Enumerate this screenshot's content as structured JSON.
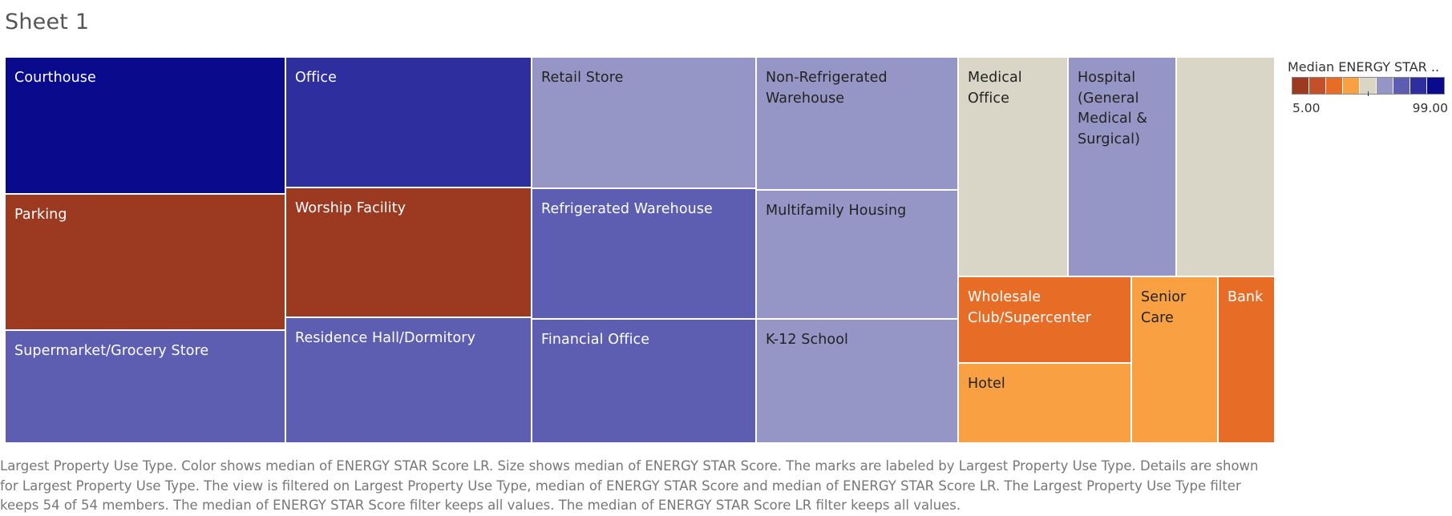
{
  "sheet": {
    "title": "Sheet 1"
  },
  "chart_data": {
    "type": "treemap",
    "dimension": "Largest Property Use Type",
    "size_measure": "median of ENERGY STAR Score",
    "color_measure": "median of ENERGY STAR Score LR",
    "tiles": [
      {
        "label": "Courthouse",
        "color": "#0a0a8c",
        "text_color": "#ffffff"
      },
      {
        "label": "Parking",
        "color": "#9c3a21",
        "text_color": "#ffffff"
      },
      {
        "label": "Supermarket/Grocery Store",
        "color": "#5d5db1",
        "text_color": "#ffffff"
      },
      {
        "label": "Office",
        "color": "#2e2e9e",
        "text_color": "#ffffff"
      },
      {
        "label": "Worship Facility",
        "color": "#9c3a21",
        "text_color": "#ffffff"
      },
      {
        "label": "Residence Hall/Dormitory",
        "color": "#5d5db1",
        "text_color": "#ffffff"
      },
      {
        "label": "Retail Store",
        "color": "#9696c6",
        "text_color": "#222222"
      },
      {
        "label": "Refrigerated Warehouse",
        "color": "#5d5db1",
        "text_color": "#ffffff"
      },
      {
        "label": "Financial Office",
        "color": "#5d5db1",
        "text_color": "#ffffff"
      },
      {
        "label": "Non-Refrigerated Warehouse",
        "color": "#9696c6",
        "text_color": "#222222"
      },
      {
        "label": "Multifamily Housing",
        "color": "#9696c6",
        "text_color": "#222222"
      },
      {
        "label": "K-12 School",
        "color": "#9696c6",
        "text_color": "#222222"
      },
      {
        "label": "Medical Office",
        "color": "#d9d6c8",
        "text_color": "#222222"
      },
      {
        "label": "Hospital (General Medical & Surgical)",
        "color": "#9696c6",
        "text_color": "#222222"
      },
      {
        "label": "",
        "color": "#d9d6c8",
        "text_color": "#222222"
      },
      {
        "label": "Wholesale Club/Supercenter",
        "color": "#e76c25",
        "text_color": "#ffffff"
      },
      {
        "label": "Hotel",
        "color": "#f8a042",
        "text_color": "#222222"
      },
      {
        "label": "Senior Care",
        "color": "#f8a042",
        "text_color": "#222222"
      },
      {
        "label": "Bank",
        "color": "#e76c25",
        "text_color": "#ffffff"
      }
    ],
    "legend": {
      "title": "Median ENERGY STAR ..",
      "min_label": "5.00",
      "max_label": "99.00",
      "colors": [
        "#9c3a21",
        "#c4502a",
        "#e76c25",
        "#f8a042",
        "#d9d6c8",
        "#9696c6",
        "#5d5db1",
        "#2e2e9e",
        "#0a0a8c"
      ]
    }
  },
  "caption": "Largest Property Use Type.  Color shows median of ENERGY STAR Score LR.  Size shows median of ENERGY STAR Score.  The marks are labeled by Largest Property Use Type.  Details are shown for Largest Property Use Type. The view is filtered on Largest Property Use Type, median of ENERGY STAR Score and median of ENERGY STAR Score LR. The Largest Property Use Type filter keeps 54 of 54 members. The median of ENERGY STAR Score filter keeps all values. The median of ENERGY STAR Score LR filter keeps all values."
}
